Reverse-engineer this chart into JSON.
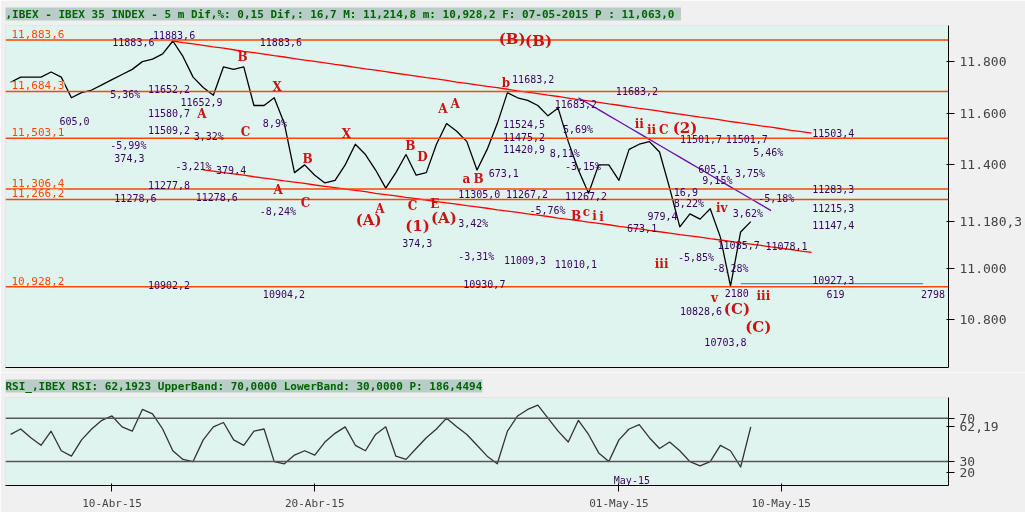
{
  "chart_data": [
    {
      "type": "line",
      "title": ",IBEX - IBEX 35 INDEX -  5 m Dif,%: 0,15 Dif,: 16,7 M: 11,214,8 m: 10,928,2 F: 07-05-2015 P : 11,063,0",
      "categories": [
        null,
        null,
        null,
        null,
        null,
        null,
        null,
        null,
        null,
        null,
        null,
        null,
        null,
        null,
        null,
        null,
        null,
        null,
        null,
        null,
        null,
        null,
        null,
        null,
        null,
        null,
        null,
        null,
        null,
        null,
        null,
        null,
        null,
        null,
        null,
        null,
        null,
        null,
        null,
        null,
        null,
        null,
        null,
        null,
        null,
        null,
        null,
        null,
        null,
        null,
        null,
        null,
        null,
        null,
        null,
        null,
        null,
        null,
        null,
        null,
        null,
        null,
        null,
        null,
        null,
        null,
        null,
        null,
        null,
        null,
        null,
        null,
        null,
        null,
        null,
        null,
        null,
        null,
        null,
        null,
        null,
        null,
        null,
        null,
        null,
        null,
        null,
        null,
        null,
        null,
        null,
        null,
        null
      ],
      "ylim": [
        10615,
        11940
      ],
      "yticks": [
        {
          "value": 10800,
          "label": "10.800"
        },
        {
          "value": 11000,
          "label": "11.000"
        },
        {
          "value": 11180.3,
          "label": "11.180,3"
        },
        {
          "value": 11400,
          "label": "11.400"
        },
        {
          "value": 11600,
          "label": "11.600"
        },
        {
          "value": 11800,
          "label": "11.800"
        }
      ],
      "tick_labels": "y",
      "grid": false,
      "series": [
        {
          "color": "#000000",
          "values": [
            11720,
            11740,
            11740,
            11740,
            11760,
            11740,
            11660,
            11680,
            11690,
            11710,
            11730,
            11750,
            11770,
            11800,
            11810,
            11830,
            11880,
            11820,
            11740,
            11700,
            11670,
            11780,
            11770,
            11780,
            11630,
            11630,
            11660,
            11560,
            11370,
            11400,
            11360,
            11330,
            11340,
            11400,
            11480,
            11440,
            11380,
            11310,
            11370,
            11440,
            11360,
            11370,
            11480,
            11560,
            11530,
            11490,
            11380,
            11460,
            11560,
            11680,
            11660,
            11650,
            11630,
            11590,
            11620,
            11490,
            11380,
            11290,
            11400,
            11400,
            11340,
            11460,
            11480,
            11490,
            11450,
            11310,
            11160,
            11210,
            11190,
            11230,
            11120,
            10930,
            11140,
            11180,
            null,
            null,
            null,
            null,
            null,
            null,
            null,
            null,
            null,
            null,
            null,
            null,
            null,
            null,
            null,
            null,
            null,
            null,
            null
          ]
        },
        {
          "color": "#ff0000",
          "values": [
            null,
            null,
            null,
            null,
            null,
            null,
            null,
            null,
            null,
            null,
            null,
            null,
            null,
            null,
            null,
            null,
            11880,
            11874,
            11869,
            11863,
            11857,
            11852,
            11846,
            11840,
            11835,
            11829,
            11823,
            11818,
            11812,
            11806,
            11801,
            11795,
            11789,
            11784,
            11778,
            11772,
            11767,
            11761,
            11755,
            11750,
            11744,
            11738,
            11733,
            11727,
            11721,
            11716,
            11710,
            11704,
            11699,
            11693,
            11687,
            11682,
            11676,
            11670,
            11665,
            11659,
            11653,
            11648,
            11642,
            11636,
            11631,
            11625,
            11619,
            11614,
            11608,
            11602,
            11597,
            11591,
            11585,
            11580,
            11574,
            11568,
            11563,
            11557,
            11551,
            11546,
            11540,
            11534,
            11529,
            11523,
            null,
            null,
            null,
            null,
            null,
            null,
            null,
            null,
            null,
            null,
            null,
            null,
            null
          ]
        },
        {
          "color": "#ff0000",
          "values": [
            null,
            null,
            null,
            null,
            null,
            null,
            null,
            null,
            null,
            null,
            null,
            null,
            null,
            null,
            null,
            null,
            null,
            null,
            null,
            11381,
            11376,
            11370,
            11365,
            11360,
            11354,
            11349,
            11344,
            11338,
            11333,
            11328,
            11322,
            11317,
            11312,
            11306,
            11301,
            11296,
            11290,
            11285,
            11280,
            11274,
            11269,
            11264,
            11258,
            11253,
            11248,
            11242,
            11237,
            11232,
            11226,
            11221,
            11216,
            11210,
            11205,
            11200,
            11194,
            11189,
            11184,
            11178,
            11173,
            11168,
            11162,
            11157,
            11152,
            11146,
            11141,
            11136,
            11130,
            11125,
            11120,
            11114,
            11109,
            11104,
            11098,
            11093,
            11088,
            11082,
            11077,
            11072,
            11066,
            11061,
            null,
            null,
            null,
            null,
            null,
            null,
            null,
            null,
            null,
            null,
            null,
            null,
            null
          ]
        },
        {
          "color": "#6a0dad",
          "values": [
            null,
            null,
            null,
            null,
            null,
            null,
            null,
            null,
            null,
            null,
            null,
            null,
            null,
            null,
            null,
            null,
            null,
            null,
            null,
            null,
            null,
            null,
            null,
            null,
            null,
            null,
            null,
            null,
            null,
            null,
            null,
            null,
            null,
            null,
            null,
            null,
            null,
            null,
            null,
            null,
            null,
            null,
            null,
            null,
            null,
            null,
            null,
            null,
            null,
            null,
            null,
            null,
            null,
            null,
            null,
            null,
            11660,
            11637,
            11614,
            11591,
            11568,
            11545,
            11522,
            11499,
            11476,
            11453,
            11430,
            11407,
            11384,
            11361,
            11338,
            11315,
            11292,
            11269,
            11246,
            11223,
            null,
            null,
            null,
            null,
            null,
            null,
            null,
            null,
            null,
            null,
            null,
            null,
            null,
            null,
            null,
            null,
            null
          ]
        },
        {
          "color": "#3399ff",
          "values": [
            null,
            null,
            null,
            null,
            null,
            null,
            null,
            null,
            null,
            null,
            null,
            null,
            null,
            null,
            null,
            null,
            null,
            null,
            null,
            null,
            null,
            null,
            null,
            null,
            null,
            null,
            null,
            null,
            null,
            null,
            null,
            null,
            null,
            null,
            null,
            null,
            null,
            null,
            null,
            null,
            null,
            null,
            null,
            null,
            null,
            null,
            null,
            null,
            null,
            null,
            null,
            null,
            null,
            null,
            null,
            null,
            null,
            null,
            null,
            null,
            null,
            null,
            null,
            null,
            null,
            null,
            null,
            null,
            null,
            null,
            null,
            null,
            10940,
            10940,
            10940,
            10940,
            10940,
            10940,
            10940,
            10940,
            10940,
            10940,
            10940,
            10940,
            10940,
            10940,
            10940,
            10940,
            10940,
            10940,
            10940,
            null,
            null
          ]
        }
      ],
      "ref_lines": [
        {
          "axis": "y",
          "value": 11883.6,
          "label": "11,883,6",
          "color": "#ff4500"
        },
        {
          "axis": "y",
          "value": 11684.3,
          "label": "11,684,3",
          "color": "#ff4500"
        },
        {
          "axis": "y",
          "value": 11503.1,
          "label": "11,503,1",
          "color": "#ff4500"
        },
        {
          "axis": "y",
          "value": 11306.4,
          "label": "11,306,4",
          "color": "#ff4500"
        },
        {
          "axis": "y",
          "value": 11266.2,
          "label": "11,266,2",
          "color": "#ff4500"
        },
        {
          "axis": "y",
          "value": 10928.2,
          "label": "10,928,2",
          "color": "#ff4500"
        }
      ],
      "annotations": [
        "11883,6",
        "11883,6",
        "11883,6",
        "605,0",
        "5,36%",
        "11652,2",
        "11652,9",
        "11580,7",
        "11509,2",
        "3,32%",
        "-5,99%",
        "374,3",
        "-3,21%",
        "379,4",
        "11277,8",
        "11278,6",
        "11278,6",
        "-8,24%",
        "10902,2",
        "10904,2",
        "8,9%",
        "B",
        "X",
        "A",
        "C",
        "B",
        "A",
        "C",
        "X",
        "A",
        "C",
        "E",
        "B",
        "D",
        "A",
        "A",
        "(A)",
        "(1)",
        "(A)",
        "374,3",
        "a",
        "B",
        "673,1",
        "11305,0",
        "11267,2",
        "3,42%",
        "-3,31%",
        "10930,7",
        "11009,3",
        "11010,1",
        "(B)",
        "(B)",
        "b",
        "11683,2",
        "11683,2",
        "11683,2",
        "11524,5",
        "11475,2",
        "11420,9",
        "8,11%",
        "5,69%",
        "-3,15%",
        "11267,2",
        "-5,76%",
        "B",
        "c",
        "i",
        "i",
        "673,1",
        "979,4",
        "iii",
        "ii",
        "ii",
        "C",
        "(2)",
        "11501,7",
        "11501,7",
        "5,46%",
        "605,1",
        "9,15%",
        "3,75%",
        "16,9",
        "8,22%",
        "-5,18%",
        "iv",
        "3,62%",
        "11085,7",
        "11078,1",
        "-5,85%",
        "-8,28%",
        "v",
        "2180",
        "iii",
        "(C)",
        "(C)",
        "10828,6",
        "10703,8",
        "11503,4",
        "11283,3",
        "11215,3",
        "11147,4",
        "10927,3",
        "619",
        "2798"
      ]
    },
    {
      "type": "line",
      "title": "RSI_,IBEX RSI: 62,1923 UpperBand: 70,0000 LowerBand: 30,0000 P: 186,4494",
      "categories": [
        null,
        null,
        null,
        null,
        null,
        null,
        null,
        null,
        null,
        null,
        "10-Abr-15",
        null,
        null,
        null,
        null,
        null,
        null,
        null,
        null,
        null,
        null,
        null,
        null,
        null,
        null,
        null,
        null,
        null,
        null,
        null,
        "20-Abr-15",
        null,
        null,
        null,
        null,
        null,
        null,
        null,
        null,
        null,
        null,
        null,
        null,
        null,
        null,
        null,
        null,
        null,
        null,
        null,
        null,
        null,
        null,
        null,
        null,
        null,
        null,
        null,
        null,
        null,
        "01-May-15",
        null,
        null,
        null,
        null,
        null,
        null,
        null,
        null,
        null,
        null,
        null,
        null,
        null,
        null,
        null,
        "10-May-15",
        null,
        null,
        null,
        null,
        null,
        null,
        null,
        null,
        null,
        null,
        null,
        null,
        null,
        null,
        null,
        null
      ],
      "ylim": [
        8,
        89
      ],
      "yticks": [
        20,
        30,
        {
          "value": 62.19,
          "label": "62,19"
        },
        70
      ],
      "grid": false,
      "series": [
        {
          "color": "#333333",
          "values": [
            55,
            60,
            52,
            45,
            58,
            40,
            35,
            50,
            60,
            68,
            72,
            62,
            58,
            78,
            74,
            60,
            40,
            32,
            30,
            50,
            62,
            66,
            50,
            45,
            58,
            60,
            30,
            28,
            36,
            40,
            36,
            48,
            56,
            62,
            45,
            40,
            55,
            62,
            35,
            32,
            42,
            52,
            60,
            70,
            62,
            55,
            45,
            35,
            28,
            58,
            72,
            78,
            82,
            70,
            58,
            48,
            68,
            55,
            38,
            30,
            50,
            60,
            64,
            52,
            42,
            48,
            40,
            30,
            26,
            30,
            45,
            40,
            25,
            62,
            null,
            null,
            null,
            null,
            null,
            null,
            null,
            null,
            null,
            null,
            null,
            null,
            null,
            null,
            null,
            null,
            null,
            null,
            null
          ]
        }
      ],
      "ref_lines": [
        {
          "axis": "y",
          "value": 70,
          "color": "#555555"
        },
        {
          "axis": "y",
          "value": 30,
          "color": "#555555"
        }
      ],
      "annotations": [
        "May-15"
      ]
    }
  ]
}
